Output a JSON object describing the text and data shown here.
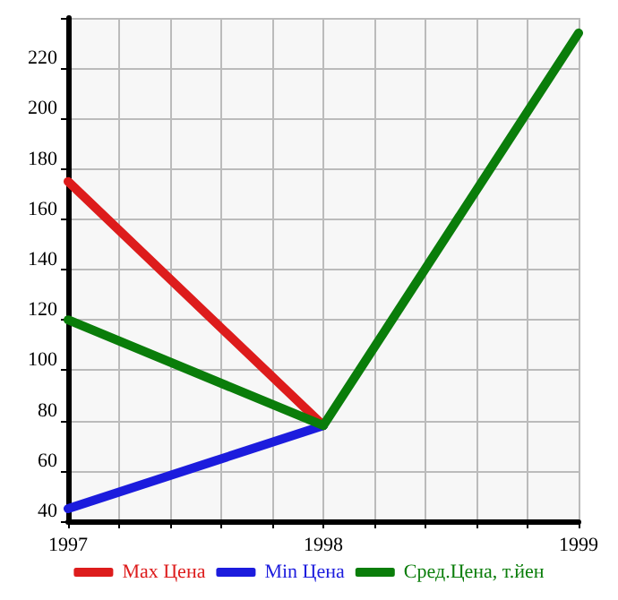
{
  "chart_data": {
    "type": "line",
    "x": [
      1997,
      1998,
      1999
    ],
    "series": [
      {
        "name": "Max Цена",
        "color": "#dd1c1c",
        "values": [
          175,
          78,
          null
        ]
      },
      {
        "name": "Min Цена",
        "color": "#1c1cdd",
        "values": [
          45,
          78,
          null
        ]
      },
      {
        "name": "Сред.Цена, т.йен",
        "color": "#0a7d0a",
        "values": [
          120,
          78,
          234
        ]
      }
    ],
    "xlim": [
      1997,
      1999
    ],
    "xticks": [
      1997,
      {
        "value": 1997.2,
        "label": null
      },
      {
        "value": 1997.4,
        "label": null
      },
      {
        "value": 1997.6,
        "label": null
      },
      {
        "value": 1997.8,
        "label": null
      },
      1998,
      {
        "value": 1998.2,
        "label": null
      },
      {
        "value": 1998.4,
        "label": null
      },
      {
        "value": 1998.6,
        "label": null
      },
      {
        "value": 1998.8,
        "label": null
      },
      1999
    ],
    "ylim": [
      40,
      240
    ],
    "yticks": [
      40,
      60,
      80,
      100,
      120,
      140,
      160,
      180,
      200,
      220,
      {
        "value": 240,
        "label": null
      }
    ],
    "grid": true,
    "legend": "bottom",
    "marker": "none",
    "line_style": "solid"
  }
}
